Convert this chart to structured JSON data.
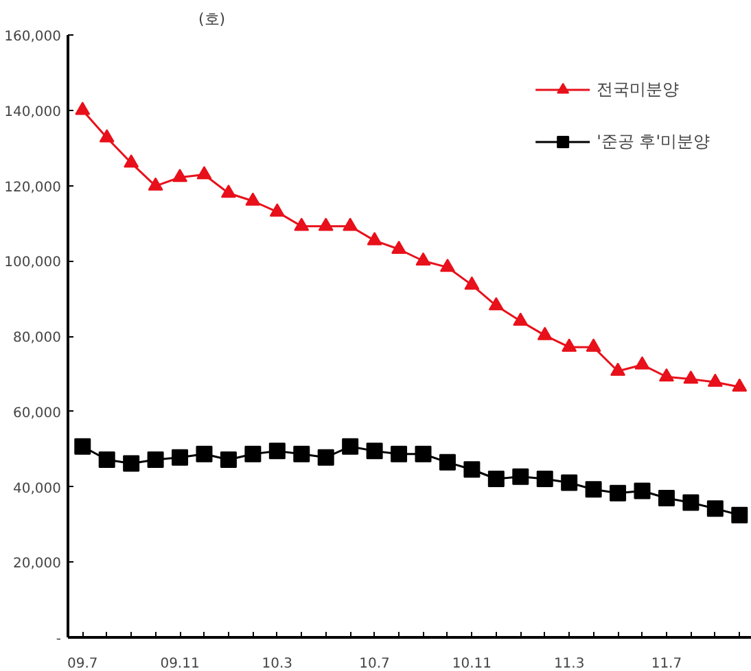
{
  "chart_data": {
    "type": "line",
    "ylabel": "(호)",
    "categories": [
      "09.7",
      null,
      null,
      null,
      "09.11",
      null,
      null,
      null,
      "10.3",
      null,
      null,
      null,
      "10.7",
      null,
      null,
      null,
      "10.11",
      null,
      null,
      null,
      "11.3",
      null,
      null,
      null,
      "11.7",
      null,
      null,
      null
    ],
    "series": [
      {
        "name": "전국미분양",
        "color": "#e8101a",
        "marker": "triangle",
        "values": [
          140000,
          132700,
          126000,
          119900,
          122200,
          122900,
          118000,
          115900,
          113000,
          109200,
          109200,
          109200,
          105400,
          103100,
          100000,
          98300,
          93600,
          88100,
          84000,
          80200,
          77100,
          77100,
          70700,
          72400,
          69200,
          68600,
          67800,
          66500
        ]
      },
      {
        "name": "'준공 후'미분양",
        "color": "#000000",
        "marker": "square",
        "values": [
          50700,
          47200,
          46200,
          47200,
          47800,
          48700,
          47200,
          48700,
          49500,
          48700,
          47800,
          50700,
          49500,
          48700,
          48700,
          46500,
          44600,
          42100,
          42700,
          42100,
          41100,
          39300,
          38300,
          38900,
          37000,
          35800,
          34200,
          32500
        ]
      }
    ],
    "ylim": [
      0,
      160000
    ],
    "yticks": [
      {
        "value": 0,
        "label": "-"
      },
      {
        "value": 20000,
        "label": "20,000"
      },
      {
        "value": 40000,
        "label": "40,000"
      },
      {
        "value": 60000,
        "label": "60,000"
      },
      {
        "value": 80000,
        "label": "80,000"
      },
      {
        "value": 100000,
        "label": "100,000"
      },
      {
        "value": 120000,
        "label": "120,000"
      },
      {
        "value": 140000,
        "label": "140,000"
      },
      {
        "value": 160000,
        "label": "160,000"
      }
    ],
    "grid": false,
    "legend": "top right"
  }
}
